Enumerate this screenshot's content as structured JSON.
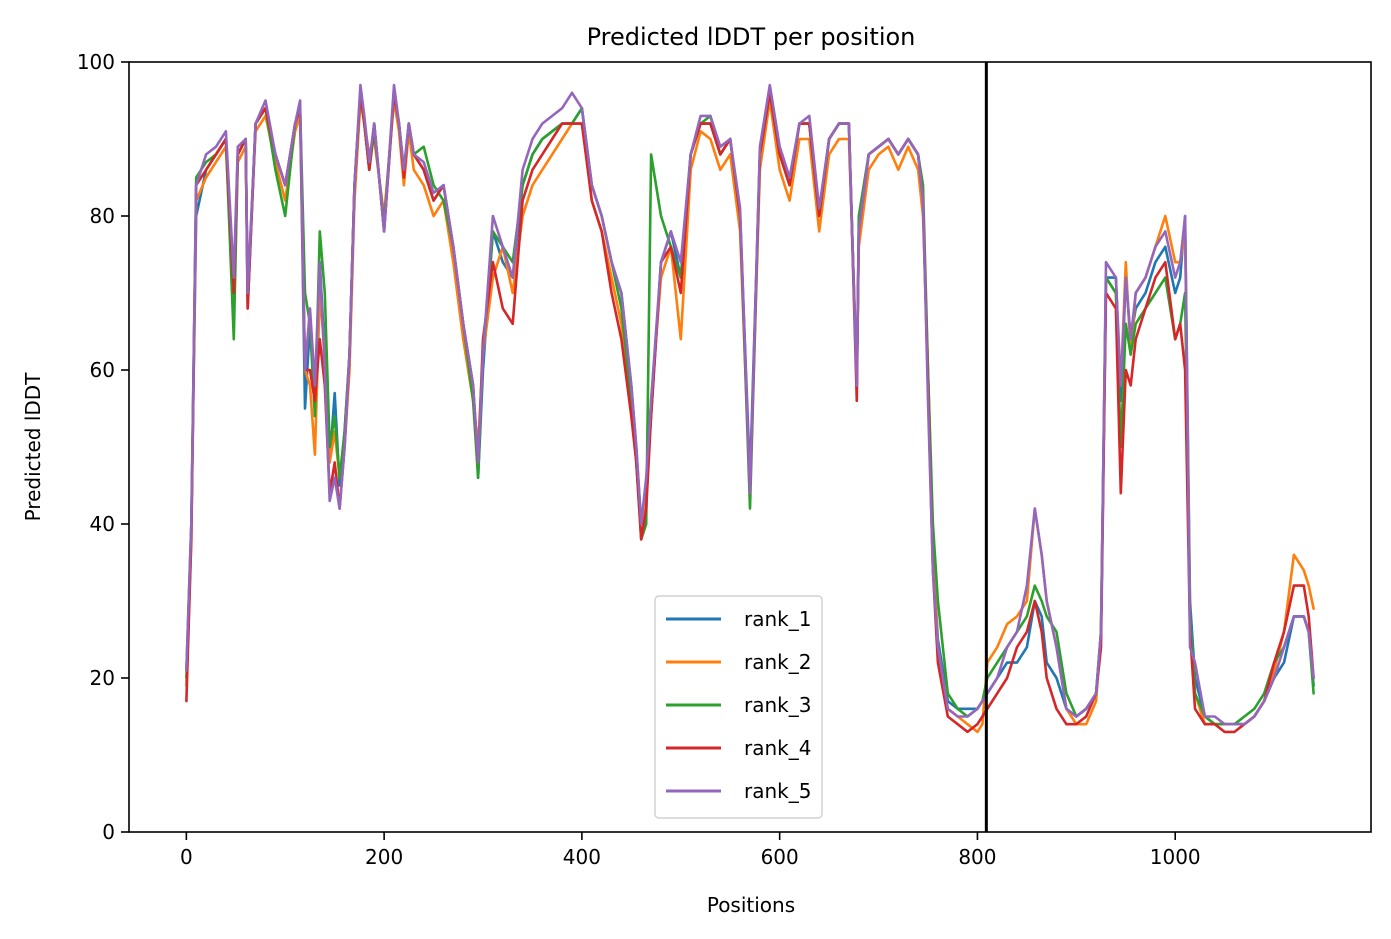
{
  "chart_data": {
    "type": "line",
    "title": "Predicted lDDT per position",
    "xlabel": "Positions",
    "ylabel": "Predicted lDDT",
    "xlim": [
      -58,
      1198
    ],
    "ylim": [
      0,
      100
    ],
    "xticks": [
      0,
      200,
      400,
      600,
      800,
      1000
    ],
    "yticks": [
      0,
      20,
      40,
      60,
      80,
      100
    ],
    "grid": false,
    "legend_position": "lower-center",
    "vline_x": 809,
    "colors": {
      "rank_1": "#1f77b4",
      "rank_2": "#ff7f0e",
      "rank_3": "#2ca02c",
      "rank_4": "#d62728",
      "rank_5": "#9467bd",
      "vline": "#000000"
    },
    "x": [
      0,
      5,
      10,
      20,
      30,
      40,
      48,
      52,
      60,
      62,
      70,
      80,
      90,
      100,
      110,
      115,
      120,
      125,
      130,
      135,
      140,
      145,
      150,
      155,
      160,
      165,
      170,
      176,
      180,
      185,
      190,
      200,
      210,
      215,
      220,
      225,
      230,
      240,
      250,
      260,
      270,
      280,
      290,
      295,
      300,
      310,
      320,
      330,
      340,
      350,
      360,
      370,
      380,
      390,
      400,
      410,
      420,
      430,
      440,
      450,
      455,
      460,
      465,
      470,
      480,
      490,
      500,
      510,
      520,
      530,
      540,
      550,
      560,
      570,
      580,
      590,
      600,
      610,
      620,
      630,
      640,
      650,
      660,
      670,
      678,
      680,
      690,
      700,
      710,
      720,
      730,
      740,
      745,
      750,
      755,
      760,
      770,
      780,
      790,
      800,
      805,
      810,
      820,
      830,
      840,
      850,
      858,
      865,
      870,
      880,
      890,
      900,
      910,
      920,
      925,
      930,
      940,
      945,
      950,
      955,
      960,
      970,
      980,
      990,
      1000,
      1005,
      1010,
      1015,
      1020,
      1030,
      1040,
      1050,
      1060,
      1070,
      1080,
      1090,
      1100,
      1110,
      1120,
      1130,
      1135,
      1140
    ],
    "series": [
      {
        "name": "rank_1",
        "values": [
          21,
          40,
          80,
          86,
          88,
          90,
          70,
          88,
          90,
          68,
          92,
          94,
          88,
          84,
          92,
          94,
          55,
          66,
          56,
          74,
          62,
          48,
          57,
          45,
          52,
          62,
          84,
          96,
          92,
          86,
          92,
          78,
          96,
          92,
          85,
          92,
          88,
          86,
          82,
          84,
          76,
          66,
          58,
          46,
          60,
          78,
          74,
          72,
          84,
          88,
          90,
          91,
          92,
          92,
          94,
          84,
          80,
          74,
          70,
          58,
          50,
          40,
          45,
          54,
          74,
          78,
          72,
          88,
          92,
          92,
          88,
          90,
          80,
          46,
          88,
          96,
          88,
          84,
          92,
          92,
          80,
          90,
          92,
          92,
          58,
          78,
          88,
          89,
          90,
          88,
          90,
          88,
          82,
          58,
          36,
          25,
          17,
          16,
          16,
          16,
          17,
          18,
          20,
          22,
          22,
          24,
          30,
          28,
          22,
          20,
          16,
          15,
          16,
          18,
          26,
          72,
          72,
          56,
          72,
          64,
          68,
          70,
          74,
          76,
          70,
          72,
          80,
          30,
          20,
          15,
          14,
          14,
          14,
          14,
          15,
          17,
          20,
          22,
          28,
          28,
          26,
          19
        ]
      },
      {
        "name": "rank_2",
        "values": [
          19,
          38,
          82,
          85,
          87,
          89,
          68,
          87,
          89,
          70,
          91,
          93,
          87,
          82,
          91,
          93,
          60,
          58,
          49,
          70,
          62,
          48,
          52,
          46,
          50,
          60,
          82,
          95,
          92,
          88,
          90,
          80,
          95,
          91,
          84,
          91,
          86,
          84,
          80,
          82,
          74,
          64,
          56,
          50,
          62,
          72,
          76,
          70,
          80,
          84,
          86,
          88,
          90,
          92,
          92,
          82,
          78,
          72,
          66,
          56,
          48,
          40,
          44,
          56,
          72,
          76,
          64,
          86,
          91,
          90,
          86,
          88,
          78,
          44,
          86,
          95,
          86,
          82,
          90,
          90,
          78,
          88,
          90,
          90,
          60,
          76,
          86,
          88,
          89,
          86,
          89,
          86,
          80,
          60,
          38,
          24,
          16,
          15,
          14,
          13,
          14,
          22,
          24,
          27,
          28,
          30,
          42,
          36,
          30,
          24,
          16,
          14,
          14,
          17,
          26,
          72,
          70,
          58,
          74,
          62,
          70,
          72,
          76,
          80,
          74,
          74,
          78,
          28,
          18,
          14,
          14,
          14,
          14,
          14,
          15,
          17,
          21,
          26,
          36,
          34,
          32,
          29
        ]
      },
      {
        "name": "rank_3",
        "values": [
          20,
          39,
          85,
          87,
          88,
          90,
          64,
          88,
          90,
          69,
          92,
          94,
          86,
          80,
          92,
          94,
          70,
          66,
          54,
          78,
          70,
          50,
          54,
          46,
          52,
          62,
          84,
          96,
          92,
          86,
          91,
          79,
          96,
          92,
          86,
          92,
          88,
          89,
          84,
          82,
          76,
          66,
          56,
          46,
          62,
          78,
          76,
          74,
          84,
          88,
          90,
          91,
          92,
          92,
          94,
          84,
          80,
          74,
          68,
          56,
          48,
          38,
          40,
          88,
          80,
          76,
          72,
          88,
          92,
          93,
          88,
          90,
          80,
          42,
          88,
          96,
          88,
          84,
          92,
          92,
          80,
          90,
          92,
          92,
          58,
          80,
          88,
          89,
          90,
          88,
          90,
          88,
          84,
          60,
          40,
          30,
          18,
          16,
          15,
          16,
          17,
          20,
          22,
          24,
          26,
          28,
          32,
          30,
          28,
          26,
          18,
          15,
          16,
          18,
          26,
          72,
          70,
          50,
          66,
          62,
          66,
          68,
          70,
          72,
          64,
          66,
          70,
          28,
          18,
          15,
          14,
          14,
          14,
          15,
          16,
          18,
          22,
          24,
          28,
          28,
          26,
          18
        ]
      },
      {
        "name": "rank_4",
        "values": [
          17,
          38,
          84,
          86,
          88,
          90,
          70,
          88,
          90,
          68,
          92,
          94,
          88,
          84,
          92,
          94,
          60,
          60,
          56,
          64,
          58,
          44,
          48,
          42,
          50,
          62,
          84,
          96,
          92,
          86,
          92,
          78,
          96,
          92,
          85,
          92,
          88,
          86,
          82,
          84,
          76,
          66,
          58,
          48,
          64,
          74,
          68,
          66,
          82,
          86,
          88,
          90,
          92,
          92,
          92,
          82,
          78,
          70,
          64,
          54,
          48,
          38,
          42,
          54,
          74,
          76,
          70,
          88,
          92,
          92,
          88,
          90,
          80,
          44,
          88,
          96,
          88,
          84,
          92,
          92,
          80,
          90,
          92,
          92,
          56,
          78,
          88,
          89,
          90,
          88,
          90,
          88,
          82,
          58,
          34,
          22,
          15,
          14,
          13,
          14,
          15,
          16,
          18,
          20,
          24,
          26,
          30,
          26,
          20,
          16,
          14,
          14,
          15,
          18,
          24,
          70,
          68,
          44,
          60,
          58,
          64,
          68,
          72,
          74,
          64,
          66,
          60,
          26,
          16,
          14,
          14,
          13,
          13,
          14,
          15,
          17,
          22,
          26,
          32,
          32,
          28,
          20
        ]
      },
      {
        "name": "rank_5",
        "values": [
          21,
          40,
          84,
          88,
          89,
          91,
          72,
          89,
          90,
          70,
          92,
          95,
          88,
          84,
          92,
          95,
          60,
          68,
          58,
          74,
          60,
          43,
          46,
          42,
          50,
          62,
          84,
          97,
          93,
          87,
          92,
          78,
          97,
          92,
          86,
          92,
          88,
          87,
          83,
          84,
          76,
          66,
          58,
          48,
          62,
          80,
          76,
          72,
          86,
          90,
          92,
          93,
          94,
          96,
          94,
          84,
          80,
          74,
          70,
          58,
          50,
          40,
          46,
          56,
          74,
          78,
          74,
          88,
          93,
          93,
          89,
          90,
          81,
          44,
          89,
          97,
          89,
          85,
          92,
          93,
          81,
          90,
          92,
          92,
          58,
          78,
          88,
          89,
          90,
          88,
          90,
          88,
          82,
          56,
          34,
          24,
          16,
          15,
          15,
          16,
          17,
          18,
          20,
          24,
          26,
          32,
          42,
          36,
          30,
          24,
          16,
          15,
          16,
          18,
          26,
          74,
          72,
          58,
          72,
          64,
          70,
          72,
          76,
          78,
          72,
          74,
          80,
          24,
          22,
          15,
          15,
          14,
          14,
          14,
          15,
          17,
          20,
          24,
          28,
          28,
          26,
          20
        ]
      }
    ]
  }
}
